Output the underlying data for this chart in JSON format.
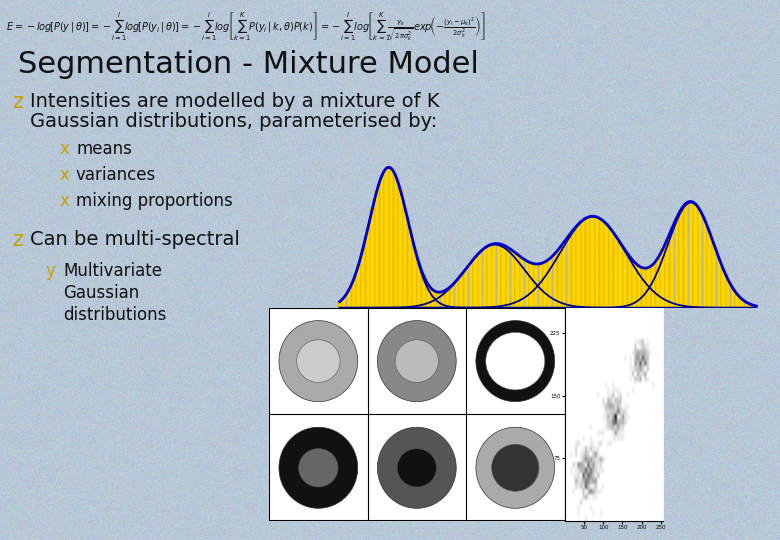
{
  "bg_color_rgb": [
    184,
    200,
    216
  ],
  "bg_noise_std": 6,
  "title": "Segmentation - Mixture Model",
  "title_fontsize": 22,
  "title_color": "#111111",
  "title_font": "Comic Sans MS",
  "bullet_font": "Comic Sans MS",
  "gold_color": "#c8a000",
  "text_color": "#111111",
  "main_bullet_fontsize": 14,
  "sub_bullet_fontsize": 12,
  "hist_mu": [
    30,
    95,
    155,
    215
  ],
  "hist_sig": [
    12,
    18,
    20,
    14
  ],
  "hist_amp": [
    0.1,
    0.045,
    0.065,
    0.075
  ],
  "hist_n_bars": 90,
  "hist_bar_color": "#FFD700",
  "hist_bar_edge": "#C8A000",
  "hist_curve_color": "#0000cc",
  "hist_indiv_color": "#000088",
  "eq_fontsize": 7,
  "eq_color": "#111111"
}
